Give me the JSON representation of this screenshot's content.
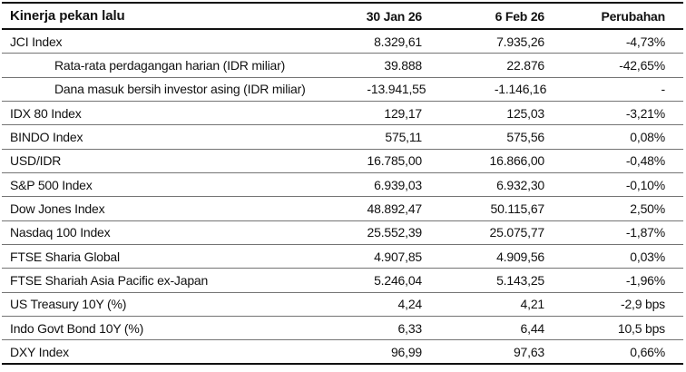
{
  "title": "Kinerja pekan lalu",
  "columns": [
    "30 Jan 26",
    "6 Feb 26",
    "Perubahan"
  ],
  "rows": [
    {
      "label": "JCI Index",
      "indent": false,
      "v1": "8.329,61",
      "v2": "7.935,26",
      "change": "-4,73%"
    },
    {
      "label": "Rata-rata perdagangan harian (IDR miliar)",
      "indent": true,
      "v1": "39.888",
      "v2": "22.876",
      "change": "-42,65%"
    },
    {
      "label": "Dana masuk bersih investor asing (IDR miliar)",
      "indent": true,
      "v1": "-13.941,55",
      "v2": "-1.146,16",
      "change": "-"
    },
    {
      "label": "IDX 80 Index",
      "indent": false,
      "v1": "129,17",
      "v2": "125,03",
      "change": "-3,21%"
    },
    {
      "label": "BINDO Index",
      "indent": false,
      "v1": "575,11",
      "v2": "575,56",
      "change": "0,08%"
    },
    {
      "label": "USD/IDR",
      "indent": false,
      "v1": "16.785,00",
      "v2": "16.866,00",
      "change": "-0,48%"
    },
    {
      "label": "S&P 500 Index",
      "indent": false,
      "v1": "6.939,03",
      "v2": "6.932,30",
      "change": "-0,10%"
    },
    {
      "label": "Dow Jones Index",
      "indent": false,
      "v1": "48.892,47",
      "v2": "50.115,67",
      "change": "2,50%"
    },
    {
      "label": "Nasdaq 100 Index",
      "indent": false,
      "v1": "25.552,39",
      "v2": "25.075,77",
      "change": "-1,87%"
    },
    {
      "label": "FTSE Sharia Global",
      "indent": false,
      "v1": "4.907,85",
      "v2": "4.909,56",
      "change": "0,03%"
    },
    {
      "label": "FTSE Shariah Asia Pacific ex-Japan",
      "indent": false,
      "v1": "5.246,04",
      "v2": "5.143,25",
      "change": "-1,96%"
    },
    {
      "label": "US Treasury 10Y (%)",
      "indent": false,
      "v1": "4,24",
      "v2": "4,21",
      "change": "-2,9 bps"
    },
    {
      "label": "Indo Govt Bond 10Y (%)",
      "indent": false,
      "v1": "6,33",
      "v2": "6,44",
      "change": "10,5 bps"
    },
    {
      "label": "DXY Index",
      "indent": false,
      "v1": "96,99",
      "v2": "97,63",
      "change": "0,66%"
    }
  ],
  "colors": {
    "text": "#111111",
    "heavy_rule": "#111111",
    "light_rule": "#747474",
    "background": "#ffffff"
  }
}
